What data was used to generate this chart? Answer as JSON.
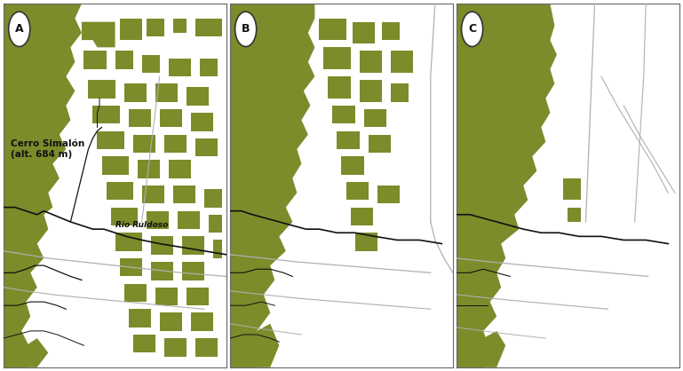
{
  "figure_bg": "#ffffff",
  "panel_bg": "#ffffff",
  "forest_color": "#7b8c2a",
  "river_color": "#111111",
  "road_color": "#b0b0b0",
  "border_color": "#444444",
  "label_color": "#111111",
  "panels": [
    "A",
    "B",
    "C"
  ],
  "text_cerro": "Cerro Simalón\n(alt. 684 m)",
  "text_rio": "Rio Ruldoso",
  "figsize": [
    7.69,
    4.18
  ],
  "dpi": 100
}
